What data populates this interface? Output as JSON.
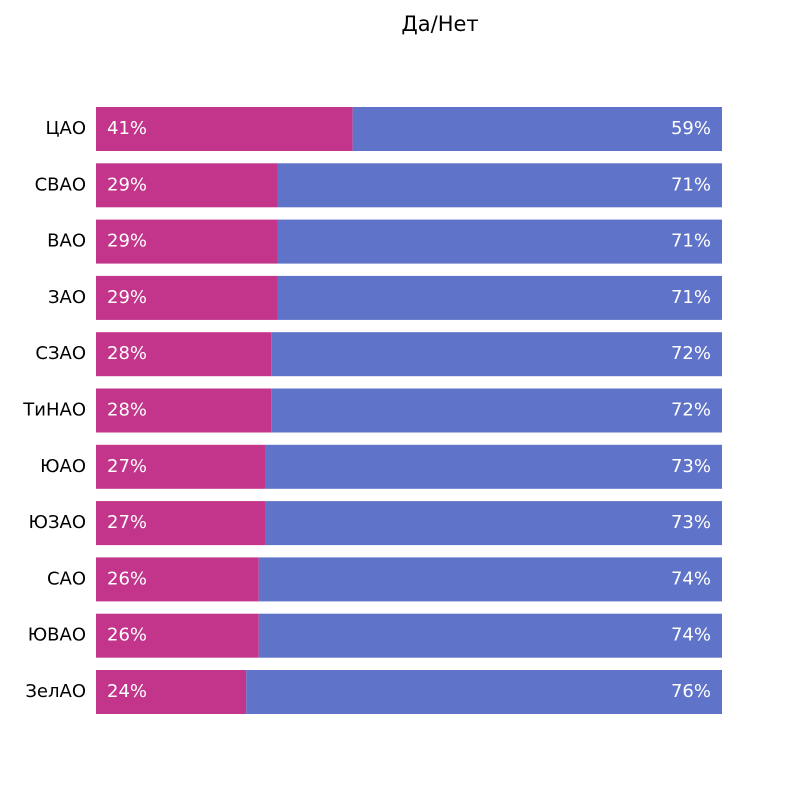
{
  "chart_data": {
    "type": "stacked-bar-horizontal",
    "title": "Да/Нет",
    "categories": [
      "ЦАО",
      "СВАО",
      "ВАО",
      "ЗАО",
      "СЗАО",
      "ТиНАО",
      "ЮАО",
      "ЮЗАО",
      "САО",
      "ЮВАО",
      "ЗелАО"
    ],
    "series": [
      {
        "color": "#c2358a",
        "values": [
          41,
          29,
          29,
          29,
          28,
          28,
          27,
          27,
          26,
          26,
          24
        ],
        "value_labels": [
          "41%",
          "29%",
          "29%",
          "29%",
          "28%",
          "28%",
          "27%",
          "27%",
          "26%",
          "26%",
          "24%"
        ]
      },
      {
        "color": "#5f73c9",
        "values": [
          59,
          71,
          71,
          71,
          72,
          72,
          73,
          73,
          74,
          74,
          76
        ],
        "value_labels": [
          "59%",
          "71%",
          "71%",
          "71%",
          "72%",
          "72%",
          "73%",
          "73%",
          "74%",
          "74%",
          "76%"
        ]
      }
    ],
    "xlim": [
      0,
      100
    ]
  }
}
